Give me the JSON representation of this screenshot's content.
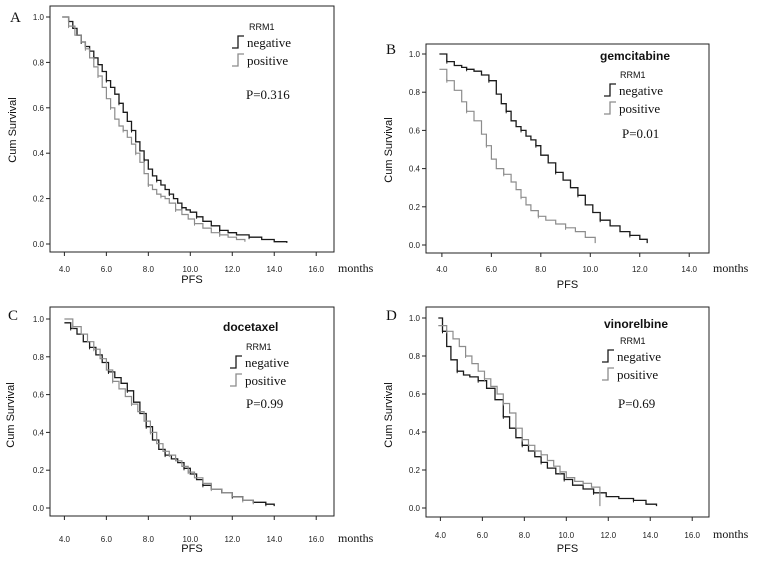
{
  "colors": {
    "negative": "#1a1a1a",
    "positive": "#8c8c8c",
    "axis": "#222222"
  },
  "chart_data": [
    {
      "type": "line",
      "panel_label": "A",
      "title": "",
      "xlabel": "PFS",
      "x_unit": "months",
      "ylabel": "Cum Survival",
      "xlim": [
        3.6,
        16.8
      ],
      "ylim": [
        0,
        1.0
      ],
      "xticks": [
        4.0,
        6.0,
        8.0,
        10.0,
        12.0,
        14.0,
        16.0
      ],
      "xtick_labels": [
        "4.0",
        "6.0",
        "8.0",
        "10.0",
        "12.0",
        "14.0",
        "16.0"
      ],
      "yticks": [
        0.0,
        0.2,
        0.4,
        0.6,
        0.8,
        1.0
      ],
      "ytick_labels": [
        "0.0",
        "0.2",
        "0.4",
        "0.6",
        "0.8",
        "1.0"
      ],
      "legend_title": "RRM1",
      "legend": [
        "negative",
        "positive"
      ],
      "annotation": "P=0.316",
      "series": [
        {
          "name": "negative",
          "x": [
            3.9,
            4.2,
            4.4,
            4.6,
            4.8,
            5.0,
            5.2,
            5.4,
            5.6,
            5.8,
            6.0,
            6.2,
            6.4,
            6.6,
            6.8,
            7.0,
            7.2,
            7.4,
            7.6,
            7.8,
            8.0,
            8.2,
            8.4,
            8.6,
            8.8,
            9.0,
            9.2,
            9.4,
            9.6,
            9.8,
            10.0,
            10.3,
            10.6,
            11.0,
            11.4,
            11.8,
            12.2,
            12.8,
            13.4,
            14.0,
            14.6
          ],
          "y": [
            1.0,
            0.98,
            0.95,
            0.92,
            0.89,
            0.87,
            0.85,
            0.82,
            0.79,
            0.76,
            0.72,
            0.69,
            0.66,
            0.62,
            0.58,
            0.54,
            0.5,
            0.45,
            0.41,
            0.37,
            0.33,
            0.3,
            0.28,
            0.26,
            0.24,
            0.22,
            0.2,
            0.18,
            0.16,
            0.15,
            0.14,
            0.12,
            0.1,
            0.08,
            0.06,
            0.05,
            0.04,
            0.03,
            0.02,
            0.01,
            0.005
          ]
        },
        {
          "name": "positive",
          "x": [
            3.9,
            4.2,
            4.5,
            4.8,
            5.0,
            5.2,
            5.4,
            5.6,
            5.8,
            6.0,
            6.2,
            6.4,
            6.6,
            6.8,
            7.0,
            7.2,
            7.4,
            7.6,
            7.8,
            8.0,
            8.2,
            8.4,
            8.6,
            8.8,
            9.0,
            9.3,
            9.6,
            9.9,
            10.2,
            10.6,
            11.0,
            11.4,
            11.8,
            12.2,
            12.6
          ],
          "y": [
            1.0,
            0.96,
            0.92,
            0.89,
            0.86,
            0.82,
            0.78,
            0.74,
            0.69,
            0.64,
            0.6,
            0.55,
            0.52,
            0.5,
            0.47,
            0.44,
            0.4,
            0.36,
            0.31,
            0.26,
            0.24,
            0.22,
            0.21,
            0.2,
            0.18,
            0.15,
            0.13,
            0.11,
            0.09,
            0.07,
            0.05,
            0.04,
            0.03,
            0.02,
            0.01
          ]
        }
      ]
    },
    {
      "type": "line",
      "panel_label": "B",
      "title": "gemcitabine",
      "xlabel": "PFS",
      "x_unit": "months",
      "ylabel": "Cum Survival",
      "xlim": [
        3.6,
        14.8
      ],
      "ylim": [
        0,
        1.0
      ],
      "xticks": [
        4.0,
        6.0,
        8.0,
        10.0,
        12.0,
        14.0
      ],
      "xtick_labels": [
        "4.0",
        "6.0",
        "8.0",
        "10.0",
        "12.0",
        "14.0"
      ],
      "yticks": [
        0.0,
        0.2,
        0.4,
        0.6,
        0.8,
        1.0
      ],
      "ytick_labels": [
        "0.0",
        "0.2",
        "0.4",
        "0.6",
        "0.8",
        "1.0"
      ],
      "legend_title": "RRM1",
      "legend": [
        "negative",
        "positive"
      ],
      "annotation": "P=0.01",
      "series": [
        {
          "name": "negative",
          "x": [
            3.9,
            4.2,
            4.5,
            4.8,
            5.0,
            5.3,
            5.6,
            5.9,
            6.2,
            6.4,
            6.6,
            6.8,
            7.0,
            7.2,
            7.4,
            7.6,
            7.8,
            8.0,
            8.3,
            8.6,
            8.9,
            9.2,
            9.5,
            9.8,
            10.1,
            10.4,
            10.8,
            11.2,
            11.6,
            12.0,
            12.3
          ],
          "y": [
            1.0,
            0.96,
            0.94,
            0.93,
            0.92,
            0.91,
            0.89,
            0.86,
            0.79,
            0.74,
            0.7,
            0.65,
            0.62,
            0.6,
            0.57,
            0.55,
            0.52,
            0.47,
            0.43,
            0.38,
            0.34,
            0.3,
            0.26,
            0.21,
            0.17,
            0.13,
            0.1,
            0.07,
            0.05,
            0.03,
            0.01
          ]
        },
        {
          "name": "positive",
          "x": [
            3.9,
            4.2,
            4.5,
            4.8,
            5.0,
            5.3,
            5.6,
            5.8,
            6.0,
            6.2,
            6.5,
            6.8,
            7.0,
            7.2,
            7.4,
            7.6,
            7.9,
            8.2,
            8.6,
            9.0,
            9.4,
            9.8,
            10.2
          ],
          "y": [
            0.92,
            0.86,
            0.81,
            0.75,
            0.7,
            0.65,
            0.58,
            0.52,
            0.45,
            0.4,
            0.37,
            0.33,
            0.29,
            0.25,
            0.21,
            0.18,
            0.15,
            0.13,
            0.11,
            0.09,
            0.07,
            0.04,
            0.01
          ]
        }
      ]
    },
    {
      "type": "line",
      "panel_label": "C",
      "title": "docetaxel",
      "xlabel": "PFS",
      "x_unit": "months",
      "ylabel": "Cum Survival",
      "xlim": [
        3.6,
        16.8
      ],
      "ylim": [
        0,
        1.0
      ],
      "xticks": [
        4.0,
        6.0,
        8.0,
        10.0,
        12.0,
        14.0,
        16.0
      ],
      "xtick_labels": [
        "4.0",
        "6.0",
        "8.0",
        "10.0",
        "12.0",
        "14.0",
        "16.0"
      ],
      "yticks": [
        0.0,
        0.2,
        0.4,
        0.6,
        0.8,
        1.0
      ],
      "ytick_labels": [
        "0.0",
        "0.2",
        "0.4",
        "0.6",
        "0.8",
        "1.0"
      ],
      "legend_title": "RRM1",
      "legend": [
        "negative",
        "positive"
      ],
      "annotation": "P=0.99",
      "series": [
        {
          "name": "negative",
          "x": [
            4.0,
            4.3,
            4.6,
            4.9,
            5.2,
            5.5,
            5.8,
            6.1,
            6.4,
            6.7,
            7.0,
            7.3,
            7.6,
            7.9,
            8.2,
            8.5,
            8.8,
            9.1,
            9.4,
            9.7,
            10.0,
            10.3,
            10.6,
            11.0,
            11.5,
            12.0,
            12.5,
            13.0,
            13.6,
            14.0
          ],
          "y": [
            0.98,
            0.95,
            0.92,
            0.88,
            0.85,
            0.81,
            0.77,
            0.72,
            0.69,
            0.66,
            0.62,
            0.56,
            0.5,
            0.43,
            0.36,
            0.31,
            0.28,
            0.26,
            0.24,
            0.21,
            0.18,
            0.15,
            0.12,
            0.1,
            0.08,
            0.06,
            0.04,
            0.03,
            0.02,
            0.01
          ]
        },
        {
          "name": "positive",
          "x": [
            4.0,
            4.4,
            4.8,
            5.1,
            5.4,
            5.7,
            6.0,
            6.3,
            6.6,
            6.9,
            7.2,
            7.5,
            7.8,
            8.1,
            8.4,
            8.7,
            9.0,
            9.3,
            9.6,
            9.9,
            10.2,
            10.6,
            11.0,
            11.5,
            12.0,
            12.5,
            13.0
          ],
          "y": [
            1.0,
            0.96,
            0.92,
            0.88,
            0.84,
            0.79,
            0.73,
            0.67,
            0.63,
            0.59,
            0.55,
            0.51,
            0.46,
            0.4,
            0.34,
            0.3,
            0.28,
            0.25,
            0.22,
            0.19,
            0.16,
            0.13,
            0.1,
            0.08,
            0.06,
            0.04,
            0.02
          ]
        }
      ]
    },
    {
      "type": "line",
      "panel_label": "D",
      "title": "vinorelbine",
      "xlabel": "PFS",
      "x_unit": "months",
      "ylabel": "Cum Survival",
      "xlim": [
        3.6,
        16.8
      ],
      "ylim": [
        0,
        1.0
      ],
      "xticks": [
        4.0,
        6.0,
        8.0,
        10.0,
        12.0,
        14.0,
        16.0
      ],
      "xtick_labels": [
        "4.0",
        "6.0",
        "8.0",
        "10.0",
        "12.0",
        "14.0",
        "16.0"
      ],
      "yticks": [
        0.0,
        0.2,
        0.4,
        0.6,
        0.8,
        1.0
      ],
      "ytick_labels": [
        "0.0",
        "0.2",
        "0.4",
        "0.6",
        "0.8",
        "1.0"
      ],
      "legend_title": "RRM1",
      "legend": [
        "negative",
        "positive"
      ],
      "annotation": "P=0.69",
      "series": [
        {
          "name": "negative",
          "x": [
            3.9,
            4.1,
            4.3,
            4.5,
            4.8,
            5.1,
            5.4,
            5.8,
            6.2,
            6.6,
            7.0,
            7.3,
            7.6,
            7.9,
            8.2,
            8.5,
            8.8,
            9.1,
            9.5,
            9.9,
            10.3,
            10.8,
            11.3,
            11.9,
            12.5,
            13.2,
            13.8,
            14.3
          ],
          "y": [
            1.0,
            0.93,
            0.85,
            0.78,
            0.72,
            0.7,
            0.69,
            0.67,
            0.63,
            0.57,
            0.48,
            0.42,
            0.37,
            0.33,
            0.3,
            0.27,
            0.24,
            0.21,
            0.18,
            0.15,
            0.12,
            0.1,
            0.08,
            0.06,
            0.05,
            0.04,
            0.02,
            0.01
          ]
        },
        {
          "name": "positive",
          "x": [
            3.9,
            4.3,
            4.6,
            4.9,
            5.2,
            5.5,
            5.8,
            6.1,
            6.4,
            6.7,
            7.0,
            7.3,
            7.6,
            7.9,
            8.2,
            8.5,
            8.8,
            9.1,
            9.4,
            9.7,
            10.0,
            10.4,
            10.8,
            11.2,
            11.6
          ],
          "y": [
            0.96,
            0.93,
            0.89,
            0.85,
            0.8,
            0.76,
            0.72,
            0.68,
            0.64,
            0.6,
            0.55,
            0.5,
            0.42,
            0.36,
            0.33,
            0.3,
            0.28,
            0.25,
            0.22,
            0.19,
            0.16,
            0.14,
            0.13,
            0.11,
            0.01
          ]
        }
      ]
    }
  ]
}
